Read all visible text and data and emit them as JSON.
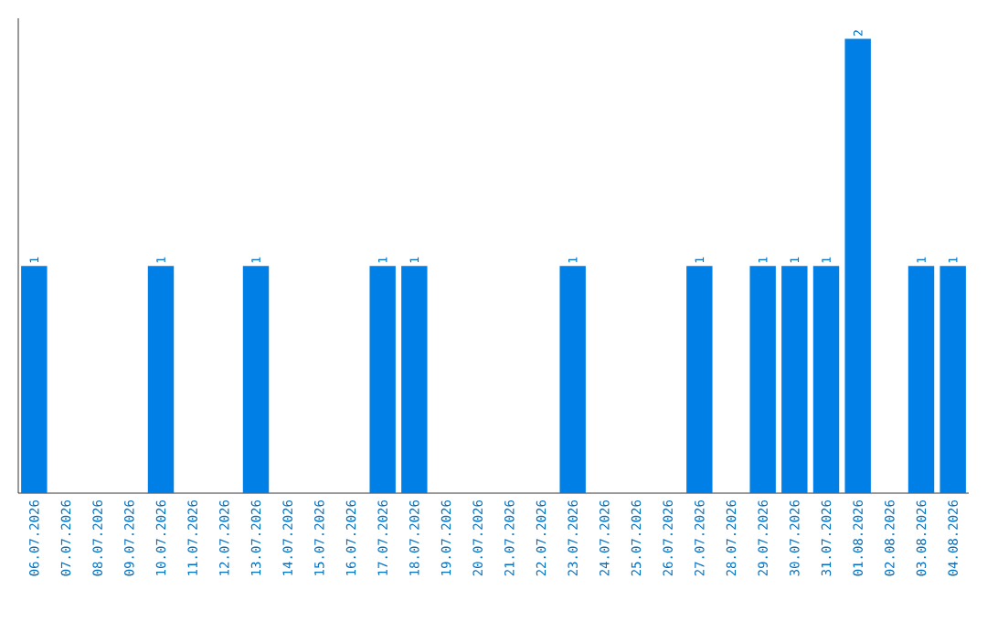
{
  "chart_data": {
    "type": "bar",
    "categories": [
      "06.07.2026",
      "07.07.2026",
      "08.07.2026",
      "09.07.2026",
      "10.07.2026",
      "11.07.2026",
      "12.07.2026",
      "13.07.2026",
      "14.07.2026",
      "15.07.2026",
      "16.07.2026",
      "17.07.2026",
      "18.07.2026",
      "19.07.2026",
      "20.07.2026",
      "21.07.2026",
      "22.07.2026",
      "23.07.2026",
      "24.07.2026",
      "25.07.2026",
      "26.07.2026",
      "27.07.2026",
      "28.07.2026",
      "29.07.2026",
      "30.07.2026",
      "31.07.2026",
      "01.08.2026",
      "02.08.2026",
      "03.08.2026",
      "04.08.2026"
    ],
    "values": [
      1,
      0,
      0,
      0,
      1,
      0,
      0,
      1,
      0,
      0,
      0,
      1,
      1,
      0,
      0,
      0,
      0,
      1,
      0,
      0,
      0,
      1,
      0,
      1,
      1,
      1,
      2,
      0,
      1,
      1
    ],
    "value_labels": [
      "1",
      null,
      null,
      null,
      "1",
      null,
      null,
      "1",
      null,
      null,
      null,
      "1",
      "1",
      null,
      null,
      null,
      null,
      "1",
      null,
      null,
      null,
      "1",
      null,
      "1",
      "1",
      "1",
      "2",
      null,
      "1",
      "1"
    ],
    "color": "#0080e6"
  }
}
